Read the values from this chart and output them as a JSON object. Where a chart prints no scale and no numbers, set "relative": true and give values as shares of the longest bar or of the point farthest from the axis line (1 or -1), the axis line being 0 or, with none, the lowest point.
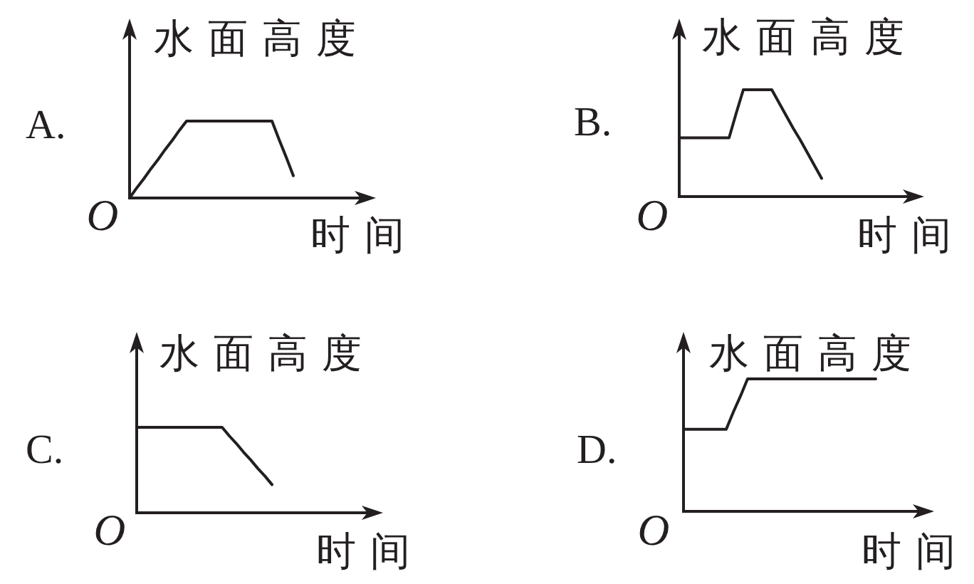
{
  "chart_data": [
    {
      "type": "line",
      "title": "A.",
      "xlabel": "时间",
      "ylabel": "水面高度",
      "annotations": [
        "O"
      ],
      "relative": true,
      "color": "#231f20",
      "categories": [
        null,
        null,
        null,
        null,
        null,
        null,
        null,
        null,
        null,
        null,
        null,
        null,
        null,
        null,
        null,
        null,
        null,
        null,
        null,
        null,
        null,
        null,
        null,
        null,
        null,
        null,
        null,
        null,
        null,
        null,
        null,
        null,
        null,
        null,
        null
      ],
      "values": [
        0,
        0.13,
        0.25,
        0.38,
        0.5,
        0.63,
        0.75,
        0.88,
        1,
        1,
        1,
        1,
        1,
        1,
        1,
        1,
        1,
        1,
        1,
        1,
        1,
        0.76,
        0.53,
        0.29,
        null,
        null,
        null,
        null,
        null,
        null,
        null,
        null,
        null,
        null,
        null
      ]
    },
    {
      "type": "line",
      "title": "B.",
      "xlabel": "时间",
      "ylabel": "水面高度",
      "annotations": [
        "O"
      ],
      "relative": true,
      "color": "#231f20",
      "categories": [
        null,
        null,
        null,
        null,
        null,
        null,
        null,
        null,
        null,
        null,
        null,
        null,
        null,
        null,
        null,
        null,
        null,
        null,
        null,
        null,
        null,
        null,
        null,
        null,
        null,
        null,
        null,
        null,
        null,
        null,
        null,
        null,
        null,
        null,
        null
      ],
      "values": [
        0.55,
        0.55,
        0.55,
        0.55,
        0.55,
        0.55,
        0.55,
        0.55,
        0.78,
        1,
        1,
        1,
        1,
        1,
        0.88,
        0.76,
        0.64,
        0.53,
        0.41,
        0.29,
        0.17,
        null,
        null,
        null,
        null,
        null,
        null,
        null,
        null,
        null,
        null,
        null,
        null,
        null,
        null
      ]
    },
    {
      "type": "line",
      "title": "C.",
      "xlabel": "时间",
      "ylabel": "水面高度",
      "annotations": [
        "O"
      ],
      "relative": true,
      "color": "#231f20",
      "categories": [
        null,
        null,
        null,
        null,
        null,
        null,
        null,
        null,
        null,
        null,
        null,
        null,
        null,
        null,
        null,
        null,
        null,
        null,
        null,
        null,
        null,
        null,
        null,
        null,
        null,
        null,
        null,
        null,
        null,
        null,
        null,
        null,
        null,
        null,
        null
      ],
      "values": [
        1,
        1,
        1,
        1,
        1,
        1,
        1,
        1,
        1,
        1,
        1,
        1,
        1,
        0.9,
        0.81,
        0.71,
        0.62,
        0.52,
        0.43,
        0.33,
        null,
        null,
        null,
        null,
        null,
        null,
        null,
        null,
        null,
        null,
        null,
        null,
        null,
        null,
        null
      ]
    },
    {
      "type": "line",
      "title": "D.",
      "xlabel": "时间",
      "ylabel": "水面高度",
      "annotations": [
        "O"
      ],
      "relative": true,
      "color": "#231f20",
      "categories": [
        null,
        null,
        null,
        null,
        null,
        null,
        null,
        null,
        null,
        null,
        null,
        null,
        null,
        null,
        null,
        null,
        null,
        null,
        null,
        null,
        null,
        null,
        null,
        null,
        null,
        null,
        null,
        null,
        null,
        null,
        null,
        null,
        null,
        null,
        null
      ],
      "values": [
        0.62,
        0.62,
        0.62,
        0.62,
        0.62,
        0.62,
        0.62,
        0.75,
        0.87,
        1,
        1,
        1,
        1,
        1,
        1,
        1,
        1,
        1,
        1,
        1,
        1,
        1,
        1,
        1,
        1,
        1,
        1,
        1,
        null,
        null,
        null,
        null,
        null,
        null,
        null
      ]
    }
  ]
}
